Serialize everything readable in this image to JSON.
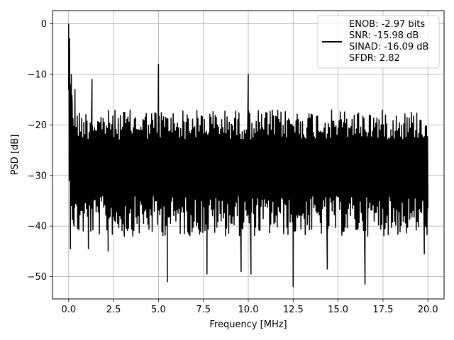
{
  "chart_data": {
    "type": "line",
    "xlabel": "Frequency [MHz]",
    "ylabel": "PSD [dB]",
    "xlim": [
      -0.9,
      20.9
    ],
    "ylim": [
      -54.4,
      2.6
    ],
    "xticks": [
      0.0,
      2.5,
      5.0,
      7.5,
      10.0,
      12.5,
      15.0,
      17.5,
      20.0
    ],
    "xtick_labels": [
      "0.0",
      "2.5",
      "5.0",
      "7.5",
      "10.0",
      "12.5",
      "15.0",
      "17.5",
      "20.0"
    ],
    "yticks": [
      0,
      -10,
      -20,
      -30,
      -40,
      -50
    ],
    "ytick_labels": [
      "0",
      "−10",
      "−20",
      "−30",
      "−40",
      "−50"
    ],
    "grid": true,
    "legend_position": "top-right",
    "legend": [
      "ENOB: -2.97 bits",
      "SNR: -15.98 dB",
      "SINAD: -16.09 dB",
      "SFDR: 2.82"
    ],
    "line_color": "#000000",
    "series": [
      {
        "x": [
          0.0,
          0.02,
          0.05,
          0.08,
          0.1,
          0.15,
          0.2,
          0.3,
          0.35,
          0.5,
          1.1,
          1.3,
          2.2,
          3.1,
          5.0,
          5.2,
          5.5,
          7.7,
          9.6,
          10.0,
          10.15,
          12.5,
          14.4,
          16.5,
          19.8,
          20.0
        ],
        "y": [
          0,
          -7,
          -3,
          -12,
          -44.5,
          -10,
          -16,
          -40,
          -13,
          -40.5,
          -44.5,
          -11,
          -45,
          -42,
          -8,
          -38,
          -51,
          -49.5,
          -49,
          -10,
          -49.5,
          -52,
          -48.5,
          -51.5,
          -45.5,
          -36.5
        ],
        "envelope": {
          "upper_mean": -17,
          "lower_mean": -34,
          "upper_spread": 6,
          "lower_spread": 8,
          "step": 0.03
        }
      }
    ]
  }
}
